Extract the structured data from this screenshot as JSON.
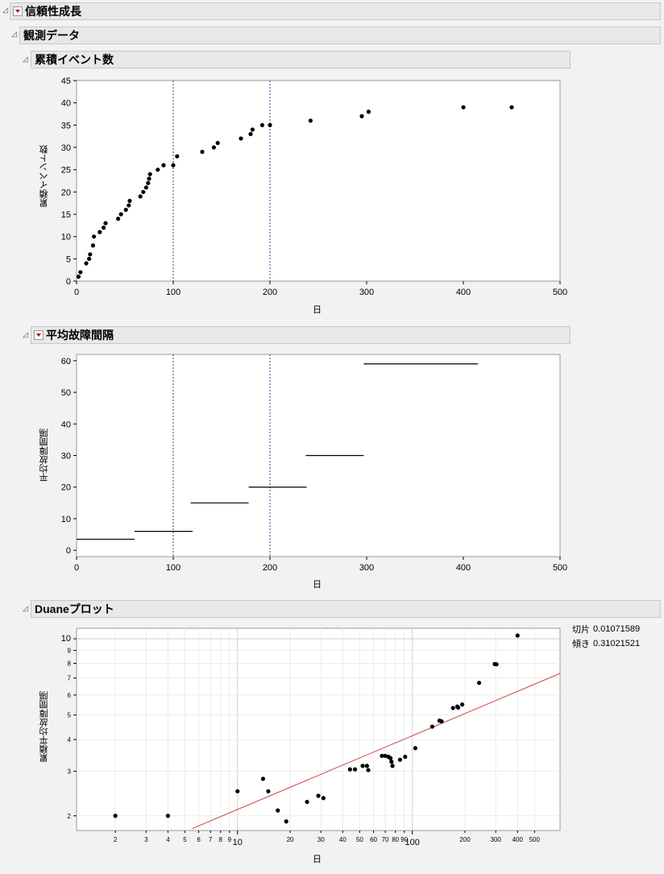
{
  "headers": {
    "reliability_growth": "信頼性成長",
    "observed_data": "観測データ",
    "cumulative_events": "累積イベント数",
    "mtbf": "平均故障間隔",
    "duane": "Duaneプロット"
  },
  "duane_stats": {
    "intercept_label": "切片",
    "intercept_value": "0.01071589",
    "slope_label": "傾き",
    "slope_value": "0.31021521"
  },
  "chart_data": [
    {
      "type": "scatter",
      "title": "累積イベント数",
      "xlabel": "日",
      "ylabel": "累積イベント数",
      "xlim": [
        0,
        500
      ],
      "ylim": [
        0,
        45
      ],
      "xticks": [
        0,
        100,
        200,
        300,
        400,
        500
      ],
      "yticks": [
        0,
        5,
        10,
        15,
        20,
        25,
        30,
        35,
        40,
        45
      ],
      "reference_lines_x": [
        100,
        200
      ],
      "x": [
        2,
        4,
        10,
        13,
        14,
        17,
        18,
        24,
        28,
        30,
        43,
        46,
        51,
        54,
        55,
        66,
        69,
        72,
        74,
        75,
        76,
        84,
        90,
        100,
        104,
        130,
        142,
        146,
        170,
        180,
        182,
        192,
        200,
        242,
        295,
        302,
        400,
        450
      ],
      "y": [
        1,
        2,
        4,
        5,
        6,
        8,
        10,
        11,
        12,
        13,
        14,
        15,
        16,
        17,
        18,
        19,
        20,
        21,
        22,
        23,
        24,
        25,
        26,
        26,
        28,
        29,
        30,
        31,
        32,
        33,
        34,
        35,
        35,
        36,
        37,
        38,
        39,
        39
      ]
    },
    {
      "type": "line",
      "title": "平均故障間隔",
      "xlabel": "日",
      "ylabel": "平均故障間隔",
      "xlim": [
        0,
        500
      ],
      "ylim": [
        -2,
        62
      ],
      "xticks": [
        0,
        100,
        200,
        300,
        400,
        500
      ],
      "yticks": [
        0,
        10,
        20,
        30,
        40,
        50,
        60
      ],
      "reference_lines_x": [
        100,
        200
      ],
      "segments": [
        {
          "x0": 0,
          "x1": 60,
          "y": 3.5
        },
        {
          "x0": 60,
          "x1": 120,
          "y": 6
        },
        {
          "x0": 118,
          "x1": 178,
          "y": 15
        },
        {
          "x0": 178,
          "x1": 238,
          "y": 20
        },
        {
          "x0": 237,
          "x1": 297,
          "y": 30
        },
        {
          "x0": 297,
          "x1": 415,
          "y": 59
        }
      ]
    },
    {
      "type": "scatter",
      "title": "Duaneプロット",
      "xlabel": "日",
      "ylabel": "累積平均故障間隔",
      "xscale": "log",
      "yscale": "log",
      "xlim": [
        1.2,
        700
      ],
      "ylim": [
        1.75,
        11
      ],
      "x_major_ticks": [
        10,
        100
      ],
      "x_minor_ticks": [
        2,
        3,
        4,
        5,
        6,
        7,
        8,
        9,
        20,
        30,
        40,
        50,
        60,
        70,
        80,
        90,
        200,
        300,
        400,
        500
      ],
      "y_ticks": [
        2,
        3,
        4,
        5,
        6,
        7,
        8,
        9,
        10
      ],
      "fit_line": {
        "x0": 5.5,
        "y0": 1.78,
        "x1": 700,
        "y1": 7.3
      },
      "x": [
        2,
        4,
        10,
        14,
        15,
        17,
        19,
        25,
        29,
        31,
        44,
        47,
        52,
        55,
        56,
        67,
        70,
        73,
        75,
        76,
        77,
        85,
        91,
        104,
        130,
        143,
        147,
        171,
        181,
        183,
        193,
        241,
        296,
        303,
        400
      ],
      "y": [
        2,
        2,
        2.5,
        2.8,
        2.5,
        2.1,
        1.9,
        2.27,
        2.4,
        2.35,
        3.05,
        3.05,
        3.15,
        3.15,
        3.03,
        3.45,
        3.45,
        3.42,
        3.38,
        3.27,
        3.15,
        3.33,
        3.42,
        3.7,
        4.5,
        4.75,
        4.72,
        5.33,
        5.4,
        5.35,
        5.5,
        6.7,
        7.95,
        7.93,
        10.3
      ]
    }
  ]
}
